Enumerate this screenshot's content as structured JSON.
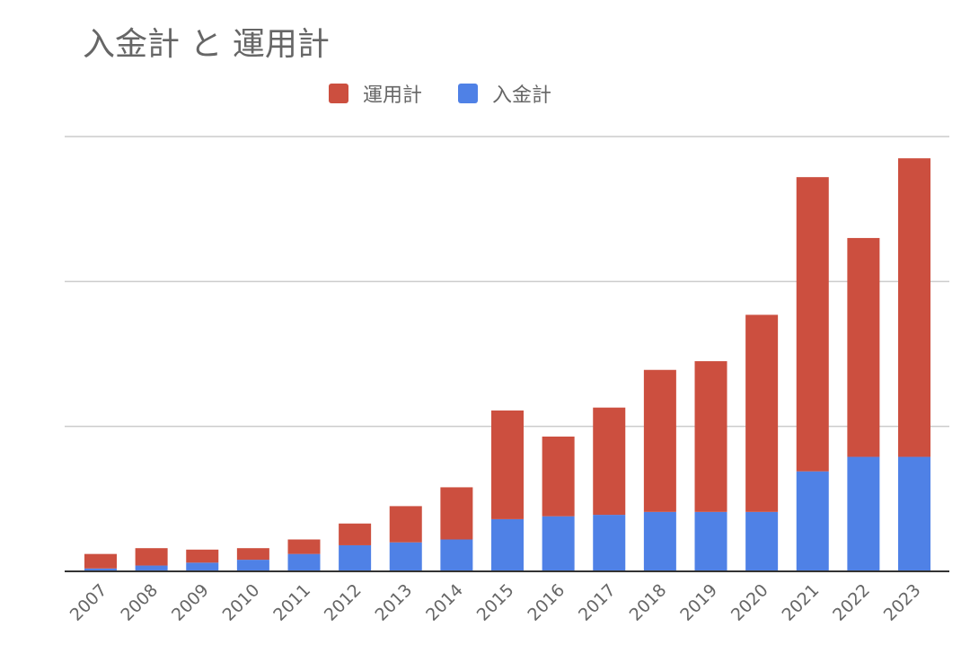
{
  "chart_data": {
    "type": "bar",
    "stacked": true,
    "title": "入金計 と 運用計",
    "categories": [
      "2007",
      "2008",
      "2009",
      "2010",
      "2011",
      "2012",
      "2013",
      "2014",
      "2015",
      "2016",
      "2017",
      "2018",
      "2019",
      "2020",
      "2021",
      "2022",
      "2023"
    ],
    "series": [
      {
        "name": "入金計",
        "color": "#4f81e6",
        "values": [
          0.1,
          0.2,
          0.3,
          0.4,
          0.6,
          0.9,
          1.0,
          1.1,
          1.8,
          1.9,
          1.95,
          2.05,
          2.05,
          2.05,
          3.45,
          3.95,
          3.95
        ]
      },
      {
        "name": "運用計",
        "color": "#cc4f3f",
        "values": [
          0.5,
          0.6,
          0.45,
          0.4,
          0.5,
          0.75,
          1.25,
          1.8,
          3.75,
          2.75,
          3.7,
          4.9,
          5.2,
          6.8,
          10.15,
          7.55,
          10.3
        ]
      }
    ],
    "legend_order": [
      "運用計",
      "入金計"
    ],
    "legend_position": "top",
    "ylim": [
      0,
      15
    ],
    "y_tick_labels_shown": false,
    "grid": true,
    "xlabel": "",
    "ylabel": ""
  }
}
